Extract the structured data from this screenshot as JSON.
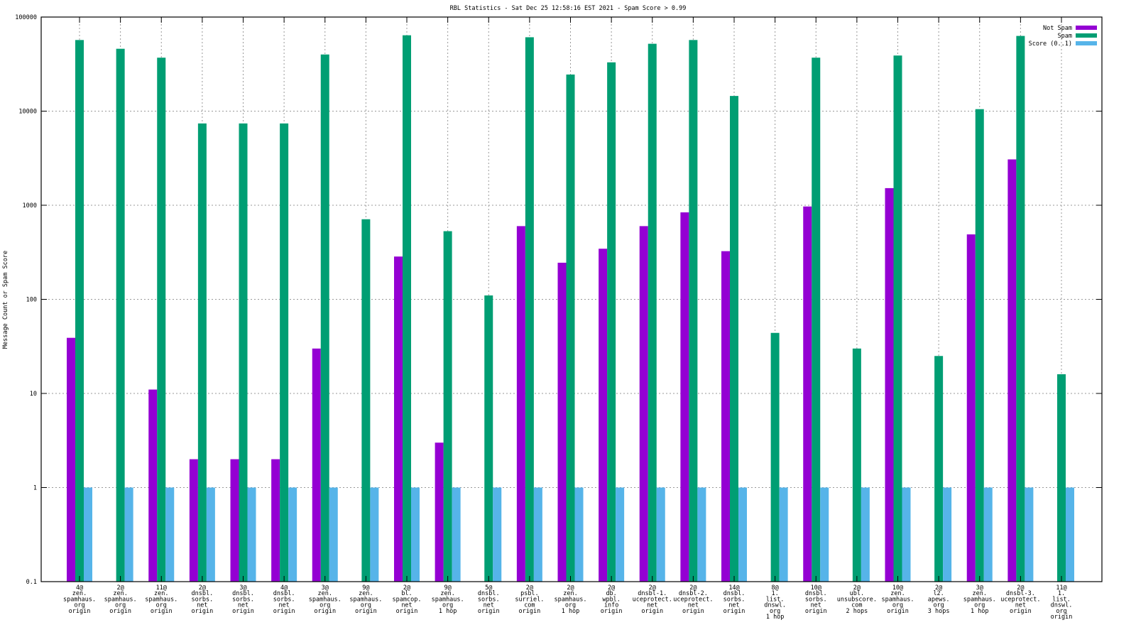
{
  "chart_data": {
    "type": "bar",
    "title": "RBL Statistics - Sat Dec 25 12:58:16 EST 2021 - Spam Score > 0.99",
    "xlabel": "",
    "ylabel": "Message Count or Spam Score",
    "yscale": "log",
    "ylim": [
      0.1,
      100000
    ],
    "yticks": [
      "0.1",
      "1",
      "10",
      "100",
      "1000",
      "10000",
      "100000"
    ],
    "grid": true,
    "legend_position": "top-right",
    "categories": [
      [
        "4@",
        "zen.",
        "spamhaus.",
        "org",
        "origin"
      ],
      [
        "2@",
        "zen.",
        "spamhaus.",
        "org",
        "origin"
      ],
      [
        "11@",
        "zen.",
        "spamhaus.",
        "org",
        "origin"
      ],
      [
        "2@",
        "dnsbl.",
        "sorbs.",
        "net",
        "origin"
      ],
      [
        "3@",
        "dnsbl.",
        "sorbs.",
        "net",
        "origin"
      ],
      [
        "4@",
        "dnsbl.",
        "sorbs.",
        "net",
        "origin"
      ],
      [
        "3@",
        "zen.",
        "spamhaus.",
        "org",
        "origin"
      ],
      [
        "9@",
        "zen.",
        "spamhaus.",
        "org",
        "origin"
      ],
      [
        "2@",
        "bl.",
        "spamcop.",
        "net",
        "origin"
      ],
      [
        "9@",
        "zen.",
        "spamhaus.",
        "org",
        "1 hop"
      ],
      [
        "5@",
        "dnsbl.",
        "sorbs.",
        "net",
        "origin"
      ],
      [
        "2@",
        "psbl.",
        "surriel.",
        "com",
        "origin"
      ],
      [
        "2@",
        "zen.",
        "spamhaus.",
        "org",
        "1 hop"
      ],
      [
        "2@",
        "db.",
        "wpbl.",
        "info",
        "origin"
      ],
      [
        "2@",
        "dnsbl-1.",
        "uceprotect.",
        "net",
        "origin"
      ],
      [
        "2@",
        "dnsbl-2.",
        "uceprotect.",
        "net",
        "origin"
      ],
      [
        "14@",
        "dnsbl.",
        "sorbs.",
        "net",
        "origin"
      ],
      [
        "8@",
        "1.",
        "list.",
        "dnswl.",
        "org",
        "1 hop"
      ],
      [
        "10@",
        "dnsbl.",
        "sorbs.",
        "net",
        "origin"
      ],
      [
        "2@",
        "ubl.",
        "unsubscore.",
        "com",
        "2 hops"
      ],
      [
        "10@",
        "zen.",
        "spamhaus.",
        "org",
        "origin"
      ],
      [
        "2@",
        "l2.",
        "apews.",
        "org",
        "3 hops"
      ],
      [
        "3@",
        "zen.",
        "spamhaus.",
        "org",
        "1 hop"
      ],
      [
        "2@",
        "dnsbl-3.",
        "uceprotect.",
        "net",
        "origin"
      ],
      [
        "11@",
        "1.",
        "list.",
        "dnswl.",
        "org",
        "origin"
      ]
    ],
    "series": [
      {
        "name": "Not Spam",
        "color": "#9400d3",
        "values": [
          39,
          null,
          11,
          2,
          2,
          2,
          30,
          null,
          285,
          3,
          null,
          600,
          245,
          345,
          600,
          840,
          325,
          null,
          970,
          null,
          1520,
          null,
          490,
          3070,
          null
        ]
      },
      {
        "name": "Spam",
        "color": "#009e73",
        "values": [
          57000,
          46000,
          37000,
          7400,
          7400,
          7400,
          40000,
          710,
          64000,
          530,
          110,
          61000,
          24500,
          33000,
          52000,
          57000,
          14500,
          44,
          37000,
          30,
          39000,
          25,
          10500,
          63000,
          16
        ]
      },
      {
        "name": "Score (0..1)",
        "color": "#56b4e9",
        "values": [
          1,
          1,
          1,
          1,
          1,
          1,
          1,
          1,
          1,
          1,
          1,
          1,
          1,
          1,
          1,
          1,
          1,
          1,
          1,
          1,
          1,
          1,
          1,
          1,
          1
        ]
      }
    ]
  }
}
